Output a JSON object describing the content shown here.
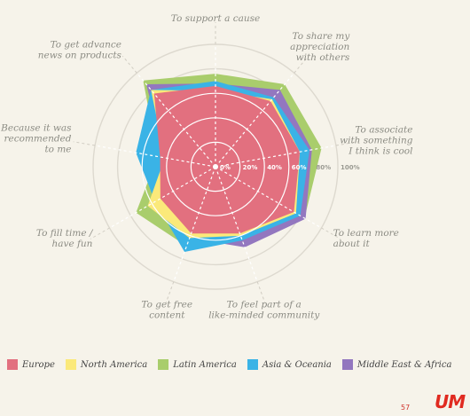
{
  "chart_data": {
    "type": "radar",
    "axes": [
      "To support a cause",
      "To share my appreciation with others",
      "To associate with something I think is cool",
      "To learn more about it",
      "To feel part of a like-minded community",
      "To get free content",
      "To fill time / have fun",
      "Because it was recommended to me",
      "To get advance news on products"
    ],
    "axis_label_lines": [
      [
        "To support a cause"
      ],
      [
        "To share my",
        "appreciation",
        "with others"
      ],
      [
        "To associate",
        "with something",
        "I think is cool"
      ],
      [
        "To learn more",
        "about it"
      ],
      [
        "To feel part of a",
        "like-minded community"
      ],
      [
        "To get free",
        "content"
      ],
      [
        "To fill time /",
        "have fun"
      ],
      [
        "Because it was",
        "recommended",
        "to me"
      ],
      [
        "To get advance",
        "news on products"
      ]
    ],
    "ticks": [
      "0%",
      "20%",
      "40%",
      "60%",
      "80%",
      "100%"
    ],
    "range": [
      0,
      100
    ],
    "series": [
      {
        "name": "Latin America",
        "color": "#a9cd6c",
        "values": [
          76,
          88,
          88,
          84,
          64,
          69,
          75,
          48,
          92
        ]
      },
      {
        "name": "Middle East & Africa",
        "color": "#9377bf",
        "values": [
          68,
          82,
          80,
          85,
          70,
          62,
          52,
          42,
          88
        ]
      },
      {
        "name": "Asia & Oceania",
        "color": "#3ab3e6",
        "values": [
          70,
          74,
          78,
          80,
          64,
          74,
          57,
          66,
          82
        ]
      },
      {
        "name": "North America",
        "color": "#fbe97a",
        "values": [
          62,
          72,
          70,
          76,
          60,
          62,
          64,
          42,
          82
        ]
      },
      {
        "name": "Europe",
        "color": "#e2707f",
        "values": [
          66,
          70,
          70,
          74,
          58,
          58,
          52,
          46,
          78
        ]
      }
    ],
    "legend": [
      {
        "name": "Europe",
        "color": "#e2707f"
      },
      {
        "name": "North America",
        "color": "#fbe97a"
      },
      {
        "name": "Latin America",
        "color": "#a9cd6c"
      },
      {
        "name": "Asia & Oceania",
        "color": "#3ab3e6"
      },
      {
        "name": "Middle East & Africa",
        "color": "#9377bf"
      }
    ],
    "legend_placement": "bottom",
    "grid": true
  },
  "footer": {
    "page_number": "57",
    "logo": "UM"
  }
}
